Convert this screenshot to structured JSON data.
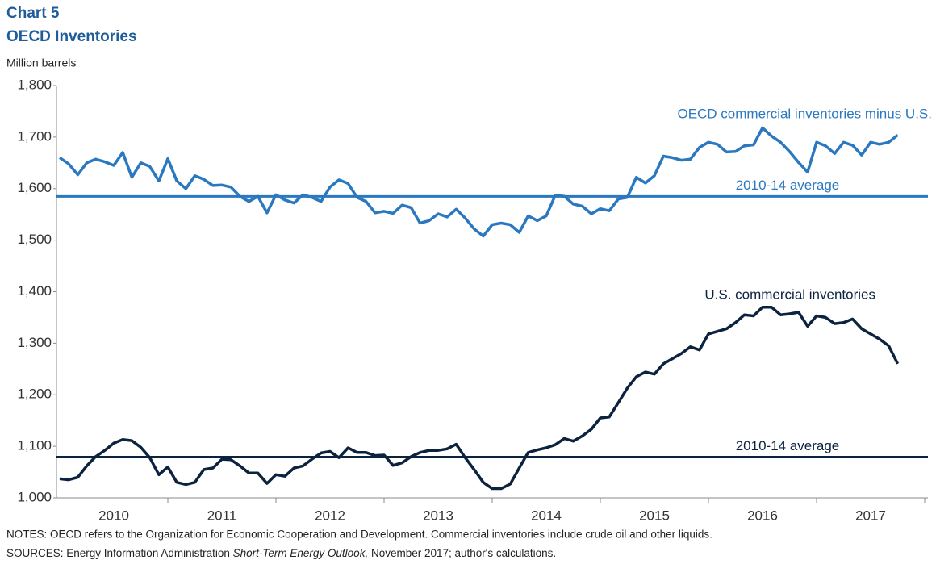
{
  "chart_data": {
    "type": "line",
    "title": "Chart 5",
    "subtitle": "OECD Inventories",
    "y_label": "Million barrels",
    "ylim": [
      1000,
      1800
    ],
    "yticks": [
      {
        "value": 1000,
        "label": "1,000"
      },
      {
        "value": 1100,
        "label": "1,100"
      },
      {
        "value": 1200,
        "label": "1,200"
      },
      {
        "value": 1300,
        "label": "1,300"
      },
      {
        "value": 1400,
        "label": "1,400"
      },
      {
        "value": 1500,
        "label": "1,500"
      },
      {
        "value": 1600,
        "label": "1,600"
      },
      {
        "value": 1700,
        "label": "1,700"
      },
      {
        "value": 1800,
        "label": "1,800"
      }
    ],
    "xlim": [
      2010,
      2018
    ],
    "xticks": [
      {
        "value": 2010.5,
        "label": "2010"
      },
      {
        "value": 2011.5,
        "label": "2011"
      },
      {
        "value": 2012.5,
        "label": "2012"
      },
      {
        "value": 2013.5,
        "label": "2013"
      },
      {
        "value": 2014.5,
        "label": "2014"
      },
      {
        "value": 2015.5,
        "label": "2015"
      },
      {
        "value": 2016.5,
        "label": "2016"
      },
      {
        "value": 2017.5,
        "label": "2017"
      }
    ],
    "x": [
      2010,
      2010.083,
      2010.167,
      2010.25,
      2010.333,
      2010.417,
      2010.5,
      2010.583,
      2010.667,
      2010.75,
      2010.833,
      2010.917,
      2011,
      2011.083,
      2011.167,
      2011.25,
      2011.333,
      2011.417,
      2011.5,
      2011.583,
      2011.667,
      2011.75,
      2011.833,
      2011.917,
      2012,
      2012.083,
      2012.167,
      2012.25,
      2012.333,
      2012.417,
      2012.5,
      2012.583,
      2012.667,
      2012.75,
      2012.833,
      2012.917,
      2013,
      2013.083,
      2013.167,
      2013.25,
      2013.333,
      2013.417,
      2013.5,
      2013.583,
      2013.667,
      2013.75,
      2013.833,
      2013.917,
      2014,
      2014.083,
      2014.167,
      2014.25,
      2014.333,
      2014.417,
      2014.5,
      2014.583,
      2014.667,
      2014.75,
      2014.833,
      2014.917,
      2015,
      2015.083,
      2015.167,
      2015.25,
      2015.333,
      2015.417,
      2015.5,
      2015.583,
      2015.667,
      2015.75,
      2015.833,
      2015.917,
      2016,
      2016.083,
      2016.167,
      2016.25,
      2016.333,
      2016.417,
      2016.5,
      2016.583,
      2016.667,
      2016.75,
      2016.833,
      2016.917,
      2017,
      2017.083,
      2017.167,
      2017.25,
      2017.333,
      2017.417,
      2017.5,
      2017.583,
      2017.667,
      2017.75
    ],
    "series": [
      {
        "name": "OECD commercial inventories minus U.S.",
        "color": "#2a78bf",
        "values": [
          1660,
          1648,
          1627,
          1650,
          1657,
          1652,
          1645,
          1670,
          1622,
          1650,
          1643,
          1615,
          1658,
          1615,
          1600,
          1625,
          1618,
          1606,
          1607,
          1603,
          1585,
          1575,
          1585,
          1553,
          1588,
          1578,
          1572,
          1588,
          1583,
          1575,
          1603,
          1617,
          1610,
          1583,
          1575,
          1553,
          1556,
          1552,
          1568,
          1563,
          1533,
          1538,
          1551,
          1545,
          1560,
          1543,
          1522,
          1508,
          1530,
          1533,
          1530,
          1515,
          1547,
          1538,
          1547,
          1587,
          1585,
          1570,
          1566,
          1551,
          1561,
          1557,
          1580,
          1583,
          1622,
          1611,
          1625,
          1663,
          1660,
          1655,
          1657,
          1680,
          1690,
          1686,
          1671,
          1672,
          1683,
          1685,
          1718,
          1702,
          1690,
          1672,
          1651,
          1632,
          1690,
          1683,
          1668,
          1690,
          1684,
          1665,
          1690,
          1686,
          1690,
          1704
        ]
      },
      {
        "name": "U.S. commercial inventories",
        "color": "#0c2340",
        "values": [
          1037,
          1035,
          1040,
          1062,
          1080,
          1092,
          1106,
          1113,
          1111,
          1098,
          1078,
          1045,
          1060,
          1030,
          1026,
          1030,
          1055,
          1058,
          1075,
          1074,
          1062,
          1048,
          1048,
          1028,
          1045,
          1042,
          1058,
          1062,
          1075,
          1087,
          1090,
          1078,
          1097,
          1088,
          1088,
          1082,
          1083,
          1063,
          1068,
          1080,
          1088,
          1092,
          1092,
          1095,
          1104,
          1078,
          1055,
          1030,
          1018,
          1018,
          1027,
          1058,
          1088,
          1093,
          1097,
          1103,
          1115,
          1110,
          1120,
          1133,
          1155,
          1157,
          1185,
          1213,
          1235,
          1244,
          1240,
          1260,
          1270,
          1280,
          1293,
          1287,
          1318,
          1323,
          1328,
          1340,
          1355,
          1353,
          1370,
          1370,
          1355,
          1357,
          1360,
          1333,
          1353,
          1350,
          1338,
          1340,
          1347,
          1328,
          1318,
          1308,
          1295,
          1260
        ]
      }
    ],
    "annotations": [
      {
        "label": "2010-14 average",
        "value": 1585,
        "color": "#2a78bf"
      },
      {
        "label": "2010-14 average",
        "value": 1079,
        "color": "#0c2340"
      }
    ],
    "notes": "NOTES: OECD refers to the Organization for Economic Cooperation and Development. Commercial inventories include crude oil and other liquids.",
    "sources": [
      "SOURCES: Energy Information Administration ",
      "Short-Term Energy Outlook,",
      " November 2017; author's calculations."
    ]
  }
}
